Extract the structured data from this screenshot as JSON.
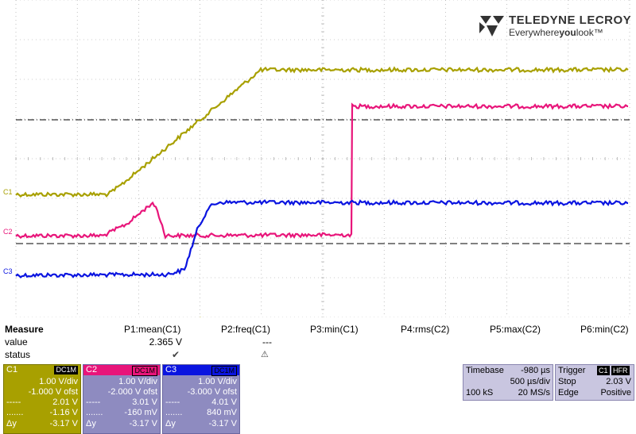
{
  "brand": {
    "name": "TELEDYNE LECROY",
    "tagline_pre": "Everywhere",
    "tagline_bold": "you",
    "tagline_post": "look",
    "tm": "™"
  },
  "channel_markers": {
    "c1": "C1",
    "c2": "C2",
    "c3": "C3"
  },
  "colors": {
    "c1": "#a8a000",
    "c2": "#e8157a",
    "c3": "#0a14e0",
    "grid": "#9a9a9a",
    "trigger": "#a8a000",
    "panel": "#c9c6e0"
  },
  "measure": {
    "title": "Measure",
    "row_value": "value",
    "row_status": "status",
    "params": [
      {
        "label": "P1:mean(C1)",
        "value": "2.365 V",
        "status": "✔"
      },
      {
        "label": "P2:freq(C1)",
        "value": "---",
        "status": "⚠"
      },
      {
        "label": "P3:min(C1)",
        "value": "",
        "status": ""
      },
      {
        "label": "P4:rms(C2)",
        "value": "",
        "status": ""
      },
      {
        "label": "P5:max(C2)",
        "value": "",
        "status": ""
      },
      {
        "label": "P6:min(C2)",
        "value": "",
        "status": ""
      }
    ]
  },
  "channels": [
    {
      "name": "C1",
      "coupling": "DC1M",
      "vdiv": "1.00 V/div",
      "offset": "-1.000 V ofst",
      "cur1_k": "-----",
      "cur1": "2.01 V",
      "cur2_k": ".......",
      "cur2": "-1.16 V",
      "dy_k": "Δy",
      "dy": "-3.17 V"
    },
    {
      "name": "C2",
      "coupling": "DC1M",
      "vdiv": "1.00 V/div",
      "offset": "-2.000 V ofst",
      "cur1_k": "-----",
      "cur1": "3.01 V",
      "cur2_k": ".......",
      "cur2": "-160 mV",
      "dy_k": "Δy",
      "dy": "-3.17 V"
    },
    {
      "name": "C3",
      "coupling": "DC1M",
      "vdiv": "1.00 V/div",
      "offset": "-3.000 V ofst",
      "cur1_k": "-----",
      "cur1": "4.01 V",
      "cur2_k": ".......",
      "cur2": "840 mV",
      "dy_k": "Δy",
      "dy": "-3.17 V"
    }
  ],
  "timebase": {
    "title": "Timebase",
    "delay": "-980 µs",
    "tdiv": "500 µs/div",
    "samples": "100 kS",
    "rate": "20 MS/s"
  },
  "trigger": {
    "title": "Trigger",
    "source": "C1",
    "mode": "HFR",
    "type": "Stop",
    "level": "2.03 V",
    "slope_k": "Edge",
    "slope": "Positive"
  }
}
